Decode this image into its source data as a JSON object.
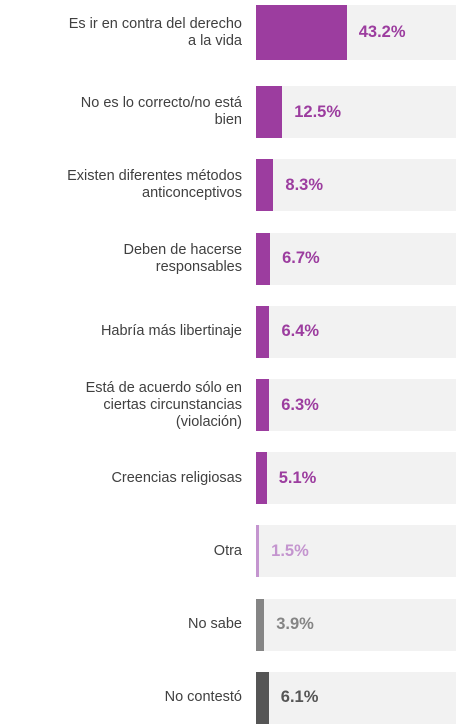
{
  "chart_data": {
    "type": "bar",
    "orientation": "horizontal",
    "categories": [
      "Es ir en contra del derecho\na la vida",
      "No es lo correcto/no está\nbien",
      "Existen diferentes métodos\nanticonceptivos",
      "Deben de hacerse\nresponsables",
      "Habría más libertinaje",
      "Está de acuerdo sólo en\nciertas circunstancias\n(violación)",
      "Creencias religiosas",
      "Otra",
      "No sabe",
      "No contestó"
    ],
    "values": [
      43.2,
      12.5,
      8.3,
      6.7,
      6.4,
      6.3,
      5.1,
      1.5,
      3.9,
      6.1
    ],
    "value_labels": [
      "43.2%",
      "12.5%",
      "8.3%",
      "6.7%",
      "6.4%",
      "6.3%",
      "5.1%",
      "1.5%",
      "3.9%",
      "6.1%"
    ],
    "colors": [
      "#9c3d9f",
      "#9c3d9f",
      "#9c3d9f",
      "#9c3d9f",
      "#9c3d9f",
      "#9c3d9f",
      "#9c3d9f",
      "#c495cf",
      "#858585",
      "#555555"
    ]
  }
}
